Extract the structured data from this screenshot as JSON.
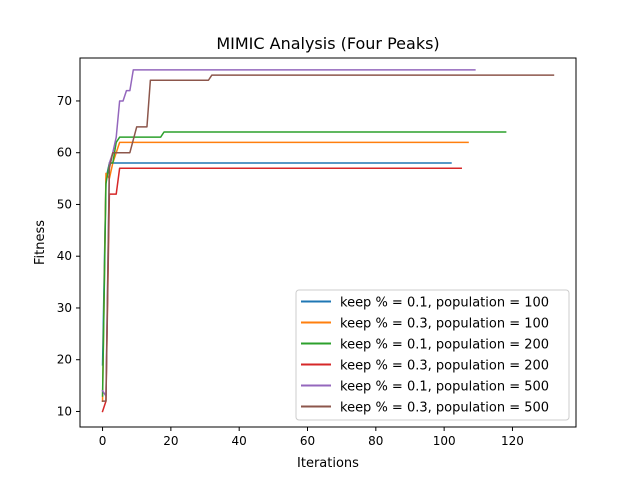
{
  "chart_data": {
    "type": "line",
    "title": "MIMIC Analysis (Four Peaks)",
    "xlabel": "Iterations",
    "ylabel": "Fitness",
    "xlim": [
      -6.6,
      138.6
    ],
    "ylim": [
      7,
      78.3
    ],
    "xticks": [
      0,
      20,
      40,
      60,
      80,
      100,
      120
    ],
    "yticks": [
      10,
      20,
      30,
      40,
      50,
      60,
      70
    ],
    "grid": false,
    "legend_position": "lower-right",
    "series": [
      {
        "name": "keep % = 0.1, population = 100",
        "color": "#1f77b4",
        "x": [
          0,
          1,
          2,
          3,
          102
        ],
        "y": [
          19,
          55,
          58,
          58,
          58
        ]
      },
      {
        "name": "keep % = 0.3, population = 100",
        "color": "#ff7f0e",
        "x": [
          0,
          1,
          2,
          3,
          4,
          5,
          107
        ],
        "y": [
          12,
          56,
          55,
          58,
          60,
          62,
          62
        ]
      },
      {
        "name": "keep % = 0.1, population = 200",
        "color": "#2ca02c",
        "x": [
          0,
          1,
          2,
          3,
          4,
          5,
          17,
          18,
          118
        ],
        "y": [
          13,
          54,
          58,
          58,
          62,
          63,
          63,
          64,
          64
        ]
      },
      {
        "name": "keep % = 0.3, population = 200",
        "color": "#d62728",
        "x": [
          0,
          1,
          2,
          4,
          5,
          105
        ],
        "y": [
          10,
          12,
          52,
          52,
          57,
          57
        ]
      },
      {
        "name": "keep % = 0.1, population = 500",
        "color": "#9467bd",
        "x": [
          0,
          1,
          2,
          3,
          4,
          5,
          6,
          7,
          8,
          9,
          109
        ],
        "y": [
          14,
          13,
          58,
          60,
          63,
          70,
          70,
          72,
          72,
          76,
          76
        ]
      },
      {
        "name": "keep % = 0.3, population = 500",
        "color": "#8c564b",
        "x": [
          0,
          1,
          2,
          3,
          4,
          8,
          10,
          13,
          14,
          31,
          32,
          132
        ],
        "y": [
          12,
          12,
          57,
          60,
          60,
          60,
          65,
          65,
          74,
          74,
          75,
          75
        ]
      }
    ]
  }
}
